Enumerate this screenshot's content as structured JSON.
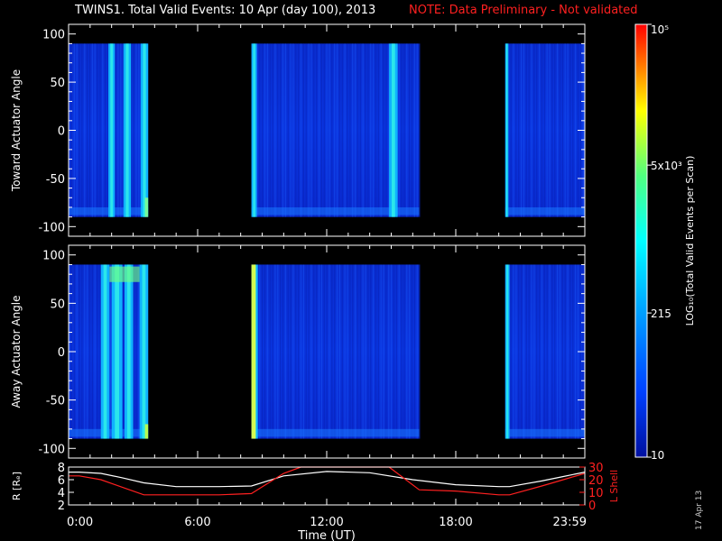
{
  "title": "TWINS1. Total Valid Events: 10 Apr (day 100), 2013",
  "note": "NOTE: Data Preliminary - Not validated",
  "date_stamp": "17 Apr 13",
  "colors": {
    "note": "#ff2020",
    "axes": "#ffffff",
    "r_line": "#ffffff",
    "l_line": "#ff2020"
  },
  "chart_data": [
    {
      "type": "heatmap",
      "name_panel": "toward",
      "ylabel": "Toward Actuator Angle",
      "ylim": [
        -110,
        110
      ],
      "yticks": [
        100,
        50,
        0,
        -50,
        -100
      ],
      "xlim_hours": [
        0,
        24
      ],
      "data_angle_range": [
        -90,
        90
      ],
      "data_segments_hours": [
        [
          0,
          3.7
        ],
        [
          8.5,
          16.3
        ],
        [
          20.3,
          24
        ]
      ],
      "bright_stripes_hours": [
        [
          1.85,
          2.15
        ],
        [
          2.55,
          2.9
        ],
        [
          3.35,
          3.7
        ],
        [
          8.5,
          8.75
        ],
        [
          14.9,
          15.3
        ],
        [
          20.3,
          20.45
        ]
      ],
      "colorscale_log": true
    },
    {
      "type": "heatmap",
      "name_panel": "away",
      "ylabel": "Away Actuator Angle",
      "ylim": [
        -110,
        110
      ],
      "yticks": [
        100,
        50,
        0,
        -50,
        -100
      ],
      "xlim_hours": [
        0,
        24
      ],
      "data_angle_range": [
        -90,
        90
      ],
      "data_segments_hours": [
        [
          0,
          3.7
        ],
        [
          8.5,
          16.3
        ],
        [
          20.3,
          24
        ]
      ],
      "bright_stripes_hours": [
        [
          1.5,
          1.9
        ],
        [
          2.0,
          2.5
        ],
        [
          2.6,
          3.0
        ],
        [
          3.3,
          3.7
        ],
        [
          8.5,
          8.8
        ],
        [
          20.3,
          20.5
        ]
      ],
      "colorscale_log": true
    },
    {
      "type": "line",
      "name_panel": "orbit",
      "xlabel": "Time (UT)",
      "x_tick_labels": [
        "0:00",
        "6:00",
        "12:00",
        "18:00",
        "23:59"
      ],
      "x_ticks_hours": [
        0,
        6,
        12,
        18,
        24
      ],
      "left_axis": {
        "label": "R [Rₑ]",
        "ylim": [
          2,
          8
        ],
        "ticks": [
          2,
          4,
          6,
          8
        ]
      },
      "right_axis": {
        "label": "L Shell",
        "ylim": [
          0,
          30
        ],
        "ticks": [
          0,
          10,
          20,
          30
        ]
      },
      "series": [
        {
          "axis": "left",
          "color": "#ffffff",
          "x": [
            0,
            0.5,
            1.5,
            2.5,
            3.5,
            5,
            7,
            8.5,
            10,
            12,
            14,
            16,
            18,
            20,
            20.5,
            22,
            23,
            24
          ],
          "y": [
            7.2,
            7.2,
            7.0,
            6.3,
            5.5,
            4.9,
            4.9,
            5.0,
            6.6,
            7.3,
            7.1,
            6.0,
            5.2,
            4.9,
            4.9,
            5.8,
            6.5,
            7.2
          ]
        },
        {
          "axis": "right",
          "color": "#ff2020",
          "x": [
            0,
            0.5,
            1.5,
            2.5,
            3.5,
            5,
            7,
            8.5,
            10,
            10.8,
            14.9,
            16.3,
            18,
            20,
            20.5,
            22,
            23,
            24
          ],
          "y": [
            23,
            23,
            20,
            14,
            8,
            8,
            8,
            9,
            25,
            30,
            30,
            12,
            11,
            8,
            8,
            15,
            20,
            25
          ]
        }
      ]
    }
  ],
  "colorbar": {
    "label": "LOG₁₀(Total Valid Events per Scan)",
    "tick_labels": [
      "10⁵",
      "5x10³",
      "215",
      "10"
    ],
    "tick_values": [
      100000,
      5000,
      215,
      10
    ],
    "range": [
      10,
      100000
    ],
    "scale": "log"
  }
}
